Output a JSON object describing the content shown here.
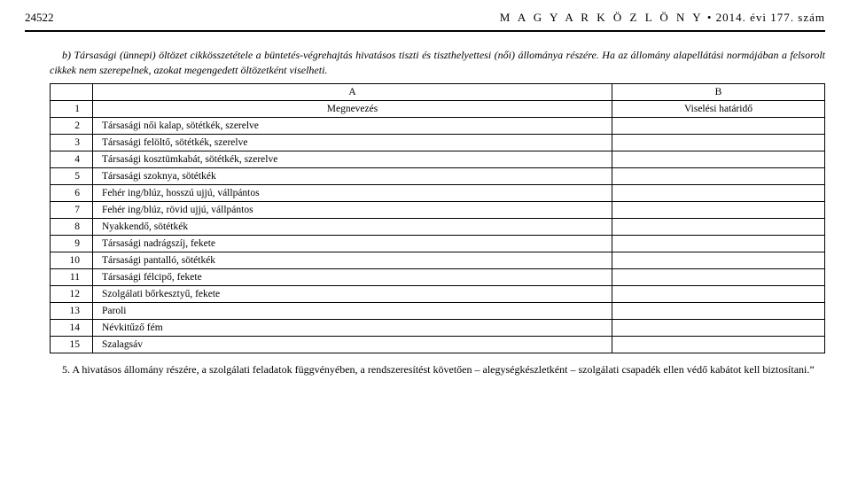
{
  "header": {
    "page_number": "24522",
    "publication": "M A G Y A R   K Ö Z L Ö N Y",
    "issue": "•  2014. évi 177. szám"
  },
  "para_b": "b) Társasági (ünnepi) öltözet cikkösszetétele a büntetés-végrehajtás hivatásos tiszti és tiszthelyettesi (női) állománya részére. Ha az állomány alapellátási normájában a felsorolt cikkek nem szerepelnek, azokat megengedett öltözetként viselheti.",
  "table": {
    "head": {
      "a": "A",
      "b": "B"
    },
    "row1": {
      "num": "1",
      "a": "Megnevezés",
      "b": "Viselési határidő"
    },
    "rows": [
      {
        "num": "2",
        "a": "Társasági női kalap, sötétkék, szerelve",
        "b": ""
      },
      {
        "num": "3",
        "a": "Társasági felöltő, sötétkék, szerelve",
        "b": ""
      },
      {
        "num": "4",
        "a": "Társasági kosztümkabát, sötétkék, szerelve",
        "b": ""
      },
      {
        "num": "5",
        "a": "Társasági szoknya, sötétkék",
        "b": ""
      },
      {
        "num": "6",
        "a": "Fehér ing/blúz, hosszú ujjú, vállpántos",
        "b": ""
      },
      {
        "num": "7",
        "a": "Fehér ing/blúz, rövid ujjú, vállpántos",
        "b": ""
      },
      {
        "num": "8",
        "a": "Nyakkendő, sötétkék",
        "b": ""
      },
      {
        "num": "9",
        "a": "Társasági nadrágszíj, fekete",
        "b": ""
      },
      {
        "num": "10",
        "a": "Társasági pantalló, sötétkék",
        "b": ""
      },
      {
        "num": "11",
        "a": "Társasági félcipő, fekete",
        "b": ""
      },
      {
        "num": "12",
        "a": "Szolgálati bőrkesztyű, fekete",
        "b": ""
      },
      {
        "num": "13",
        "a": "Paroli",
        "b": ""
      },
      {
        "num": "14",
        "a": "Névkitűző fém",
        "b": ""
      },
      {
        "num": "15",
        "a": "Szalagsáv",
        "b": ""
      }
    ]
  },
  "footnote": "5. A hivatásos állomány részére, a szolgálati feladatok függvényében, a rendszeresítést követően – alegységkészletként – szolgálati csapadék ellen védő kabátot kell biztosítani.”"
}
